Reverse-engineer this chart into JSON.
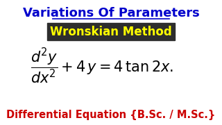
{
  "title": "Variations Of Parameters",
  "subtitle": "Wronskian Method",
  "equation": "$\\dfrac{d^2y}{dx^2} + 4\\,y = 4\\,\\tan 2x.$",
  "footer": "Differential Equation {B.Sc. / M.Sc.}",
  "bg_color": "#ffffff",
  "title_color": "#0000cc",
  "subtitle_color": "#ffff00",
  "subtitle_bg": "#2d2d2d",
  "equation_color": "#000000",
  "footer_color": "#cc0000",
  "title_fontsize": 13,
  "subtitle_fontsize": 12,
  "equation_fontsize": 15,
  "footer_fontsize": 10.5
}
